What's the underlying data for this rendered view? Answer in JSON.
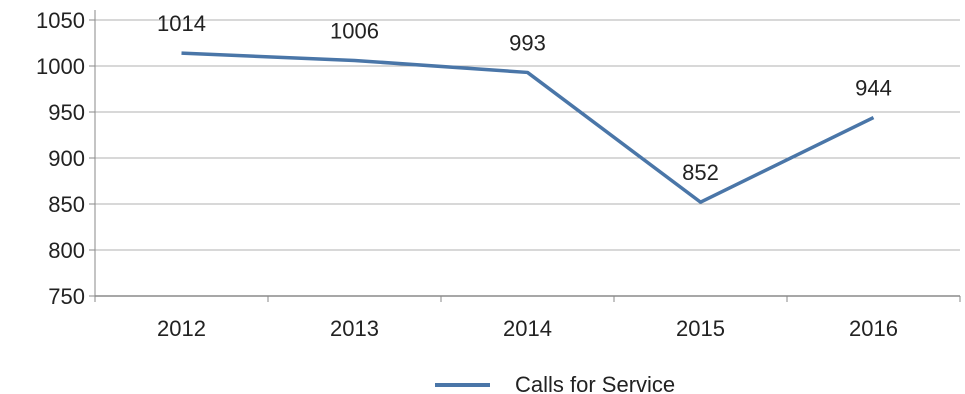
{
  "chart_data": {
    "type": "line",
    "title": "",
    "xlabel": "",
    "ylabel": "",
    "categories": [
      "2012",
      "2013",
      "2014",
      "2015",
      "2016"
    ],
    "series": [
      {
        "name": "Calls for Service",
        "values": [
          1014,
          1006,
          993,
          852,
          944
        ],
        "data_labels": [
          "1014",
          "1006",
          "993",
          "852",
          "944"
        ],
        "color": "#4A76A8"
      }
    ],
    "ylim": [
      750,
      1050
    ],
    "yticks": [
      750,
      800,
      850,
      900,
      950,
      1000,
      1050
    ],
    "ytick_labels": [
      "750",
      "800",
      "850",
      "900",
      "950",
      "1000",
      "1050"
    ],
    "grid": true,
    "legend_position": "bottom-center",
    "grid_color": "#b0b0b0",
    "axis_color": "#8a8a8a"
  }
}
